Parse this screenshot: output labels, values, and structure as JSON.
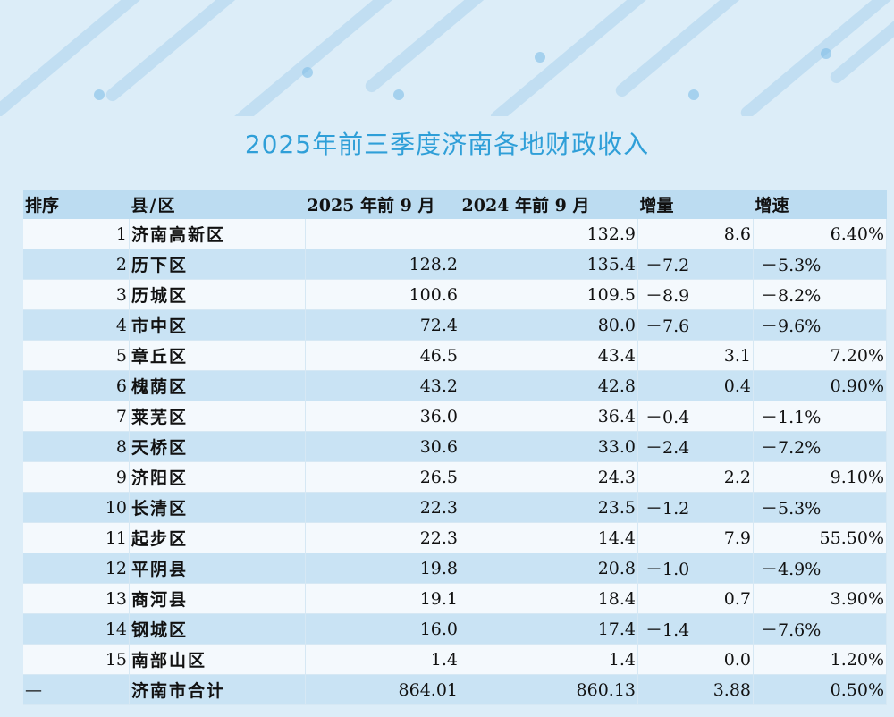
{
  "title": "2025年前三季度济南各地财政收入",
  "headers": [
    "排序",
    "县/区",
    "2025 年前 9 月",
    "2024 年前 9 月",
    "增量",
    "增速"
  ],
  "rows": [
    {
      "rank": "1",
      "name": "济南高新区",
      "y2025": "",
      "y2024": "132.9",
      "delta": "8.6",
      "rate": "6.40%",
      "neg": false
    },
    {
      "rank": "2",
      "name": "历下区",
      "y2025": "128.2",
      "y2024": "135.4",
      "delta": "－7.2",
      "rate": "－5.3%",
      "neg": true
    },
    {
      "rank": "3",
      "name": "历城区",
      "y2025": "100.6",
      "y2024": "109.5",
      "delta": "－8.9",
      "rate": "－8.2%",
      "neg": true
    },
    {
      "rank": "4",
      "name": "市中区",
      "y2025": "72.4",
      "y2024": "80.0",
      "delta": "－7.6",
      "rate": "－9.6%",
      "neg": true
    },
    {
      "rank": "5",
      "name": "章丘区",
      "y2025": "46.5",
      "y2024": "43.4",
      "delta": "3.1",
      "rate": "7.20%",
      "neg": false
    },
    {
      "rank": "6",
      "name": "槐荫区",
      "y2025": "43.2",
      "y2024": "42.8",
      "delta": "0.4",
      "rate": "0.90%",
      "neg": false
    },
    {
      "rank": "7",
      "name": "莱芜区",
      "y2025": "36.0",
      "y2024": "36.4",
      "delta": "－0.4",
      "rate": "－1.1%",
      "neg": true
    },
    {
      "rank": "8",
      "name": "天桥区",
      "y2025": "30.6",
      "y2024": "33.0",
      "delta": "－2.4",
      "rate": "－7.2%",
      "neg": true
    },
    {
      "rank": "9",
      "name": "济阳区",
      "y2025": "26.5",
      "y2024": "24.3",
      "delta": "2.2",
      "rate": "9.10%",
      "neg": false
    },
    {
      "rank": "10",
      "name": "长清区",
      "y2025": "22.3",
      "y2024": "23.5",
      "delta": "－1.2",
      "rate": "－5.3%",
      "neg": true
    },
    {
      "rank": "11",
      "name": "起步区",
      "y2025": "22.3",
      "y2024": "14.4",
      "delta": "7.9",
      "rate": "55.50%",
      "neg": false
    },
    {
      "rank": "12",
      "name": "平阴县",
      "y2025": "19.8",
      "y2024": "20.8",
      "delta": "－1.0",
      "rate": "－4.9%",
      "neg": true
    },
    {
      "rank": "13",
      "name": "商河县",
      "y2025": "19.1",
      "y2024": "18.4",
      "delta": "0.7",
      "rate": "3.90%",
      "neg": false
    },
    {
      "rank": "14",
      "name": "钢城区",
      "y2025": "16.0",
      "y2024": "17.4",
      "delta": "－1.4",
      "rate": "－7.6%",
      "neg": true
    },
    {
      "rank": "15",
      "name": "南部山区",
      "y2025": "1.4",
      "y2024": "1.4",
      "delta": "0.0",
      "rate": "1.20%",
      "neg": false
    }
  ],
  "total": {
    "rank": "—",
    "name": "济南市合计",
    "y2025": "864.01",
    "y2024": "860.13",
    "delta": "3.88",
    "rate": "0.50%"
  }
}
